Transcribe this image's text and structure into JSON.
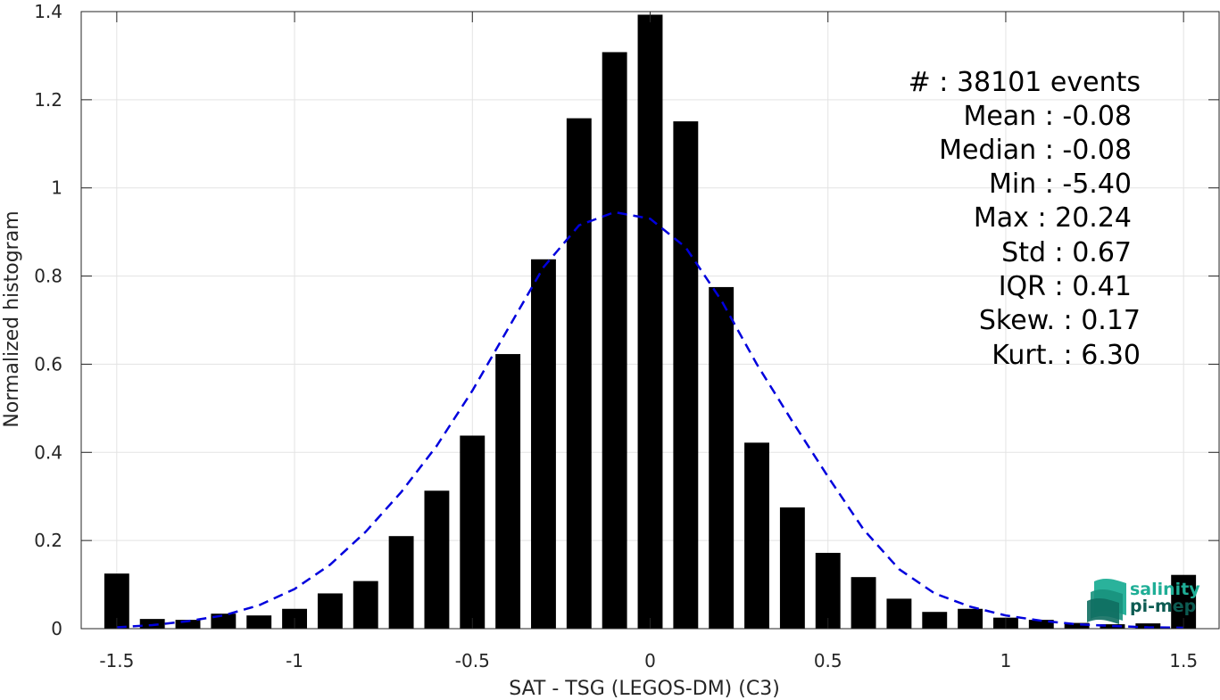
{
  "chart_data": {
    "type": "bar",
    "xlabel": "SAT - TSG (LEGOS-DM) (C3)",
    "ylabel": "Normalized histogram",
    "xlim": [
      -1.6,
      1.6
    ],
    "ylim": [
      0,
      1.4
    ],
    "grid": true,
    "x_ticks": [
      -1.5,
      -1,
      -0.5,
      0,
      0.5,
      1,
      1.5
    ],
    "x_tick_labels": [
      "-1.5",
      "-1",
      "-0.5",
      "0",
      "0.5",
      "1",
      "1.5"
    ],
    "y_ticks": [
      0,
      0.2,
      0.4,
      0.6,
      0.8,
      1,
      1.2,
      1.4
    ],
    "y_tick_labels": [
      "0",
      "0.2",
      "0.4",
      "0.6",
      "0.8",
      "1",
      "1.2",
      "1.4"
    ],
    "bar_color": "#000000",
    "bar_width": 0.07,
    "bins": [
      -1.5,
      -1.4,
      -1.3,
      -1.2,
      -1.1,
      -1.0,
      -0.9,
      -0.8,
      -0.7,
      -0.6,
      -0.5,
      -0.4,
      -0.3,
      -0.2,
      -0.1,
      0.0,
      0.1,
      0.2,
      0.3,
      0.4,
      0.5,
      0.6,
      0.7,
      0.8,
      0.9,
      1.0,
      1.1,
      1.2,
      1.3,
      1.4,
      1.5
    ],
    "values": [
      0.125,
      0.022,
      0.02,
      0.034,
      0.03,
      0.045,
      0.08,
      0.108,
      0.21,
      0.313,
      0.438,
      0.623,
      0.838,
      1.158,
      1.308,
      1.393,
      1.151,
      0.775,
      0.422,
      0.275,
      0.172,
      0.117,
      0.068,
      0.038,
      0.045,
      0.025,
      0.02,
      0.013,
      0.01,
      0.012,
      0.122
    ],
    "fit_curve": {
      "style": "dashed",
      "color": "#0000dd",
      "x": [
        -1.5,
        -1.4,
        -1.3,
        -1.2,
        -1.1,
        -1.0,
        -0.9,
        -0.8,
        -0.7,
        -0.6,
        -0.5,
        -0.4,
        -0.3,
        -0.2,
        -0.1,
        0.0,
        0.1,
        0.2,
        0.3,
        0.4,
        0.5,
        0.6,
        0.7,
        0.8,
        0.9,
        1.0,
        1.1,
        1.2,
        1.3,
        1.4,
        1.5
      ],
      "y": [
        0.003,
        0.008,
        0.017,
        0.03,
        0.053,
        0.09,
        0.145,
        0.22,
        0.31,
        0.415,
        0.54,
        0.68,
        0.82,
        0.915,
        0.945,
        0.93,
        0.865,
        0.745,
        0.6,
        0.47,
        0.345,
        0.225,
        0.135,
        0.08,
        0.05,
        0.03,
        0.018,
        0.01,
        0.006,
        0.003,
        0.002
      ]
    },
    "annotations": [
      "#  : 38101 events",
      "Mean : -0.08",
      "Median : -0.08",
      "Min : -5.40",
      "Max : 20.24",
      "Std : 0.67",
      "IQR : 0.41",
      "Skew. : 0.17",
      "Kurt. : 6.30"
    ]
  },
  "logo": {
    "line1": "salinity",
    "line2": "pi-mep",
    "colors": {
      "teal": "#1fae96",
      "dark": "#0d5b52"
    }
  }
}
